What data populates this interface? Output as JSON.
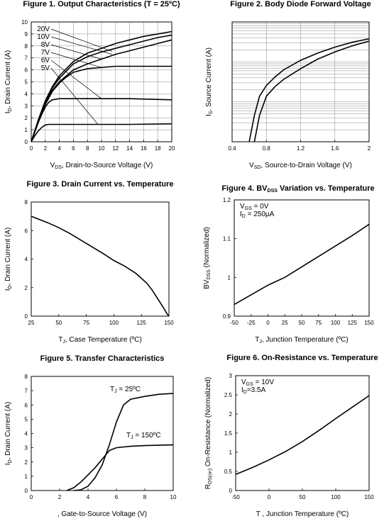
{
  "chart_data": [
    {
      "type": "line",
      "title": "Figure 1. Output Characteristics (T = 25ºC)",
      "xlabel_sym": "V",
      "xlabel_sub": "DS",
      "xlabel_rest": ", Drain-to-Source Voltage (V)",
      "ylabel_sym": "I",
      "ylabel_sub": "D",
      "ylabel_rest": ", Drain Current (A)",
      "xlim": [
        0,
        20
      ],
      "ylim": [
        0,
        10
      ],
      "xticks": [
        "0",
        "2",
        "4",
        "6",
        "8",
        "10",
        "12",
        "14",
        "16",
        "18",
        "20"
      ],
      "yticks": [
        "0",
        "1",
        "2",
        "3",
        "4",
        "5",
        "6",
        "7",
        "8",
        "9",
        "10"
      ],
      "grid": true,
      "series": [
        {
          "name": "20V",
          "x": [
            0,
            0.5,
            1,
            2,
            3,
            4,
            6,
            8,
            10,
            12,
            14,
            16,
            18,
            20
          ],
          "y": [
            0,
            0.9,
            1.8,
            3.4,
            4.6,
            5.5,
            6.7,
            7.4,
            7.8,
            8.2,
            8.5,
            8.8,
            9.0,
            9.2
          ]
        },
        {
          "name": "10V",
          "x": [
            0,
            0.5,
            1,
            2,
            3,
            4,
            6,
            8,
            10,
            12,
            14,
            16,
            18,
            20
          ],
          "y": [
            0,
            0.9,
            1.8,
            3.4,
            4.5,
            5.3,
            6.5,
            7.1,
            7.5,
            7.8,
            8.1,
            8.4,
            8.7,
            8.9
          ]
        },
        {
          "name": "8V",
          "x": [
            0,
            0.5,
            1,
            2,
            3,
            4,
            6,
            8,
            10,
            12,
            14,
            16,
            18,
            20
          ],
          "y": [
            0,
            0.9,
            1.8,
            3.3,
            4.3,
            5.0,
            6.0,
            6.5,
            6.9,
            7.3,
            7.6,
            7.9,
            8.2,
            8.5
          ]
        },
        {
          "name": "7V",
          "x": [
            0,
            0.5,
            1,
            2,
            3,
            4,
            5,
            6,
            8,
            10,
            12,
            14,
            16,
            18,
            20
          ],
          "y": [
            0,
            0.9,
            1.7,
            3.1,
            4.2,
            4.9,
            5.4,
            5.8,
            6.1,
            6.2,
            6.3,
            6.3,
            6.3,
            6.3,
            6.3
          ]
        },
        {
          "name": "6V",
          "x": [
            0,
            0.5,
            1,
            1.5,
            2,
            2.5,
            3,
            4,
            6,
            8,
            10,
            14,
            20
          ],
          "y": [
            0,
            0.8,
            1.6,
            2.3,
            2.9,
            3.3,
            3.5,
            3.6,
            3.6,
            3.6,
            3.6,
            3.6,
            3.5
          ]
        },
        {
          "name": "5V",
          "x": [
            0,
            0.5,
            1,
            1.5,
            2,
            2.5,
            3,
            4,
            6,
            10,
            14,
            20
          ],
          "y": [
            0,
            0.5,
            0.9,
            1.2,
            1.4,
            1.45,
            1.45,
            1.45,
            1.45,
            1.45,
            1.45,
            1.5
          ]
        }
      ]
    },
    {
      "type": "line",
      "title": "Figure 2. Body Diode Forward Voltage",
      "xlabel_sym": "V",
      "xlabel_sub": "SD",
      "xlabel_rest": ", Source-to-Drain Voltage (V)",
      "ylabel_sym": "I",
      "ylabel_sub": "S",
      "ylabel_rest": ", Source Current (A)",
      "xlim": [
        0.4,
        2
      ],
      "xticks": [
        "0.4",
        "0.8",
        "1.2",
        "1.6",
        "2"
      ],
      "yscale": "log",
      "yticks_shown": false,
      "grid": true,
      "series": [
        {
          "x": [
            0.6,
            0.66,
            0.72,
            0.8,
            0.9,
            1.0,
            1.2,
            1.4,
            1.6,
            1.8,
            2.0
          ],
          "y": [
            0.0,
            0.22,
            0.38,
            0.47,
            0.54,
            0.6,
            0.68,
            0.74,
            0.79,
            0.83,
            0.86
          ]
        },
        {
          "x": [
            0.66,
            0.72,
            0.8,
            0.9,
            1.0,
            1.2,
            1.4,
            1.6,
            1.8,
            2.0
          ],
          "y": [
            0.0,
            0.22,
            0.38,
            0.46,
            0.52,
            0.61,
            0.69,
            0.75,
            0.8,
            0.84
          ]
        }
      ]
    },
    {
      "type": "line",
      "title": "Figure 3. Drain Current vs. Temperature",
      "xlabel_sym": "T",
      "xlabel_sub": "J",
      "xlabel_rest": ", Case Temperature (ºC)",
      "ylabel_sym": "I",
      "ylabel_sub": "D",
      "ylabel_rest": ", Drain Current (A)",
      "xlim": [
        25,
        150
      ],
      "ylim": [
        0,
        8
      ],
      "xticks": [
        "25",
        "50",
        "75",
        "100",
        "125",
        "150"
      ],
      "yticks": [
        "0",
        "2",
        "4",
        "6",
        "8"
      ],
      "grid": false,
      "series": [
        {
          "x": [
            25,
            40,
            50,
            60,
            75,
            90,
            100,
            110,
            120,
            130,
            135,
            140,
            145,
            148,
            150
          ],
          "y": [
            7.0,
            6.55,
            6.2,
            5.8,
            5.1,
            4.4,
            3.9,
            3.5,
            3.0,
            2.3,
            1.8,
            1.2,
            0.6,
            0.2,
            0
          ]
        }
      ]
    },
    {
      "type": "line",
      "title_main": "Figure 4. BV",
      "title_sub": "DSS",
      "title_rest": " Variation vs. Temperature",
      "xlabel_sym": "T",
      "xlabel_sub": "J",
      "xlabel_rest": ", Junction Temperature (ºC)",
      "ylabel_sym": "BV",
      "ylabel_sub": "DSS",
      "ylabel_rest": " (Normalized)",
      "xlim": [
        -50,
        150
      ],
      "ylim": [
        0.9,
        1.2
      ],
      "xticks": [
        "-50",
        "-25",
        "0",
        "25",
        "50",
        "75",
        "100",
        "125",
        "150"
      ],
      "yticks": [
        "0.9",
        "1",
        "1.1",
        "1.2"
      ],
      "grid": false,
      "annotations": [
        {
          "sym": "V",
          "sub": "GS",
          "rest": " = 0V"
        },
        {
          "sym": "I",
          "sub": "D",
          "rest": " = 250µA"
        }
      ],
      "series": [
        {
          "x": [
            -50,
            0,
            25,
            50,
            75,
            100,
            125,
            150
          ],
          "y": [
            0.93,
            0.98,
            1.0,
            1.027,
            1.054,
            1.081,
            1.108,
            1.137
          ]
        }
      ]
    },
    {
      "type": "line",
      "title": "Figure 5. Transfer Characteristics",
      "xlabel_rest": ", Gate-to-Source Voltage (V)",
      "ylabel_sym": "I",
      "ylabel_sub": "D",
      "ylabel_rest": ", Drain Current (A)",
      "xlim": [
        0,
        10
      ],
      "ylim": [
        0,
        8
      ],
      "xticks": [
        "0",
        "2",
        "4",
        "6",
        "8",
        "10"
      ],
      "yticks": [
        "0",
        "1",
        "2",
        "3",
        "4",
        "5",
        "6",
        "7",
        "8"
      ],
      "grid": false,
      "series": [
        {
          "name_sym": "T",
          "name_sub": "J",
          "name_rest": " = 25ºC",
          "x": [
            3,
            3.5,
            4,
            4.5,
            5,
            5.5,
            6,
            6.5,
            7,
            8,
            9,
            10
          ],
          "y": [
            0,
            0.05,
            0.3,
            0.9,
            1.8,
            3.2,
            4.8,
            6.0,
            6.4,
            6.6,
            6.75,
            6.8
          ]
        },
        {
          "name_sym": "T",
          "name_sub": "J",
          "name_rest": " = 150ºC",
          "x": [
            2.5,
            3,
            3.5,
            4,
            4.5,
            5,
            5.5,
            6,
            7,
            8,
            10
          ],
          "y": [
            0,
            0.2,
            0.6,
            1.1,
            1.6,
            2.2,
            2.8,
            3.0,
            3.1,
            3.15,
            3.2
          ]
        }
      ]
    },
    {
      "type": "line",
      "title": "Figure 6. On-Resistance vs. Temperature",
      "xlabel_sym": "T",
      "xlabel_rest": " , Junction Temperature (ºC)",
      "ylabel_sym": "R",
      "ylabel_sub": "DS(on)",
      "ylabel_rest": " On-Resistance (Normalized)",
      "xlim": [
        -50,
        150
      ],
      "ylim": [
        0,
        3
      ],
      "xticks": [
        "-50",
        "0",
        "50",
        "100",
        "150"
      ],
      "yticks": [
        "0",
        "0.5",
        "1",
        "1.5",
        "2",
        "2.5",
        "3"
      ],
      "grid": false,
      "annotations": [
        {
          "sym": "V",
          "sub": "GS",
          "rest": " = 10V"
        },
        {
          "sym": "I",
          "sub": "D",
          "rest": "=3.5A"
        }
      ],
      "series": [
        {
          "x": [
            -50,
            -25,
            0,
            25,
            50,
            75,
            100,
            125,
            150
          ],
          "y": [
            0.42,
            0.6,
            0.8,
            1.02,
            1.28,
            1.57,
            1.88,
            2.18,
            2.48
          ]
        }
      ]
    }
  ]
}
